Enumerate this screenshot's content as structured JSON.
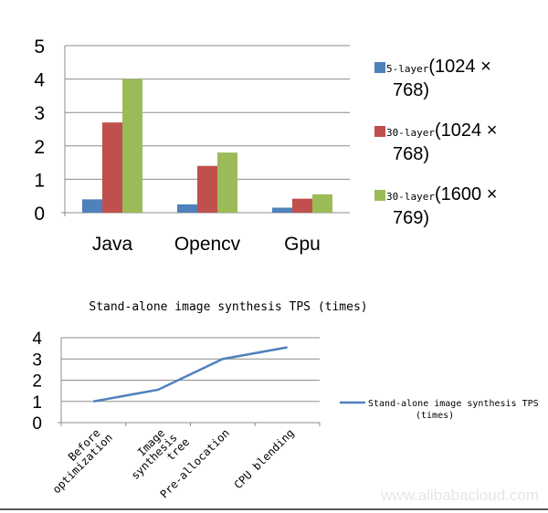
{
  "chart_data": [
    {
      "type": "bar",
      "categories": [
        "Java",
        "Opencv",
        "Gpu"
      ],
      "series": [
        {
          "name": "5-layer",
          "name_suffix": "(1024 × 768)",
          "values": [
            0.4,
            0.25,
            0.15
          ],
          "color": "#4f81bd"
        },
        {
          "name": "30-layer",
          "name_suffix": "(1024 × 768)",
          "values": [
            2.7,
            1.4,
            0.42
          ],
          "color": "#c0504d"
        },
        {
          "name": "30-layer",
          "name_suffix": "(1600 × 769)",
          "values": [
            4.0,
            1.8,
            0.55
          ],
          "color": "#9bbb59"
        }
      ],
      "yticks": [
        0,
        1,
        2,
        3,
        4,
        5
      ],
      "ylim": [
        0,
        5
      ],
      "grid": true,
      "legend": "right"
    },
    {
      "type": "line",
      "title": "Stand-alone image synthesis TPS (times)",
      "categories": [
        "Before\noptimization",
        "Image\nsynthesis\ntree",
        "Pre-allocation",
        "CPU blending"
      ],
      "series": [
        {
          "name": "Stand-alone image synthesis TPS (times)",
          "values": [
            1.0,
            1.55,
            3.0,
            3.55
          ],
          "color": "#4f81bd"
        }
      ],
      "yticks": [
        0,
        1,
        2,
        3,
        4
      ],
      "ylim": [
        0,
        4
      ],
      "grid": true,
      "legend": "right"
    }
  ],
  "watermark": "www.alibabacloud.com"
}
